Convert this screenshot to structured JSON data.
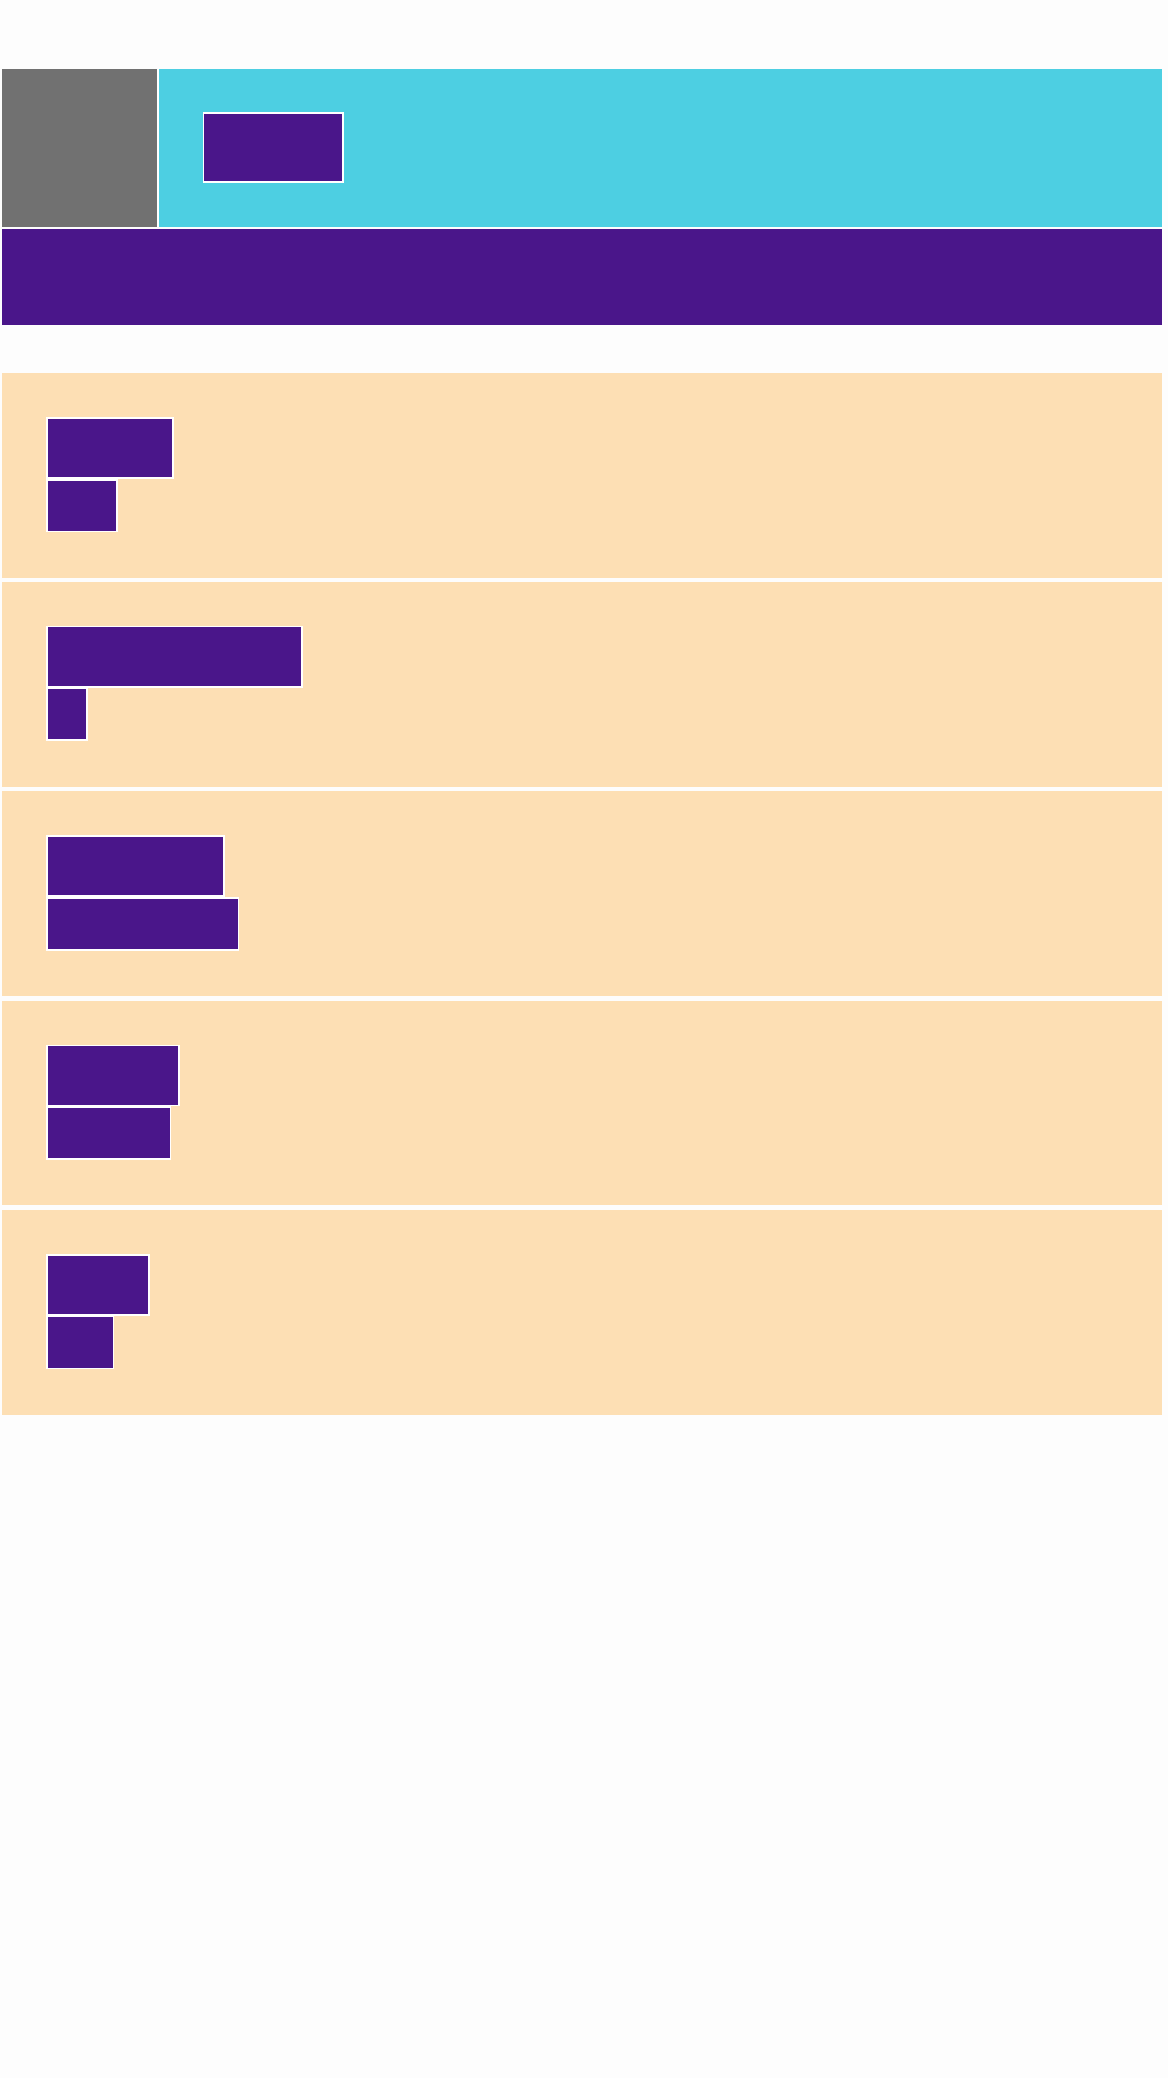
{
  "theme": {
    "header_thumb_color": "#717171",
    "header_bg": "#4dcfe2",
    "banner_bg": "#4a168a",
    "card_bg": "#fddfb4",
    "block_color": "#4a168a",
    "page_bg": "#fdfdfd"
  },
  "header": {
    "title": ""
  },
  "list": {
    "items": [
      {
        "title": "",
        "subtitle": ""
      },
      {
        "title": "",
        "subtitle": ""
      },
      {
        "title": "",
        "subtitle": ""
      },
      {
        "title": "",
        "subtitle": ""
      },
      {
        "title": "",
        "subtitle": ""
      }
    ]
  }
}
